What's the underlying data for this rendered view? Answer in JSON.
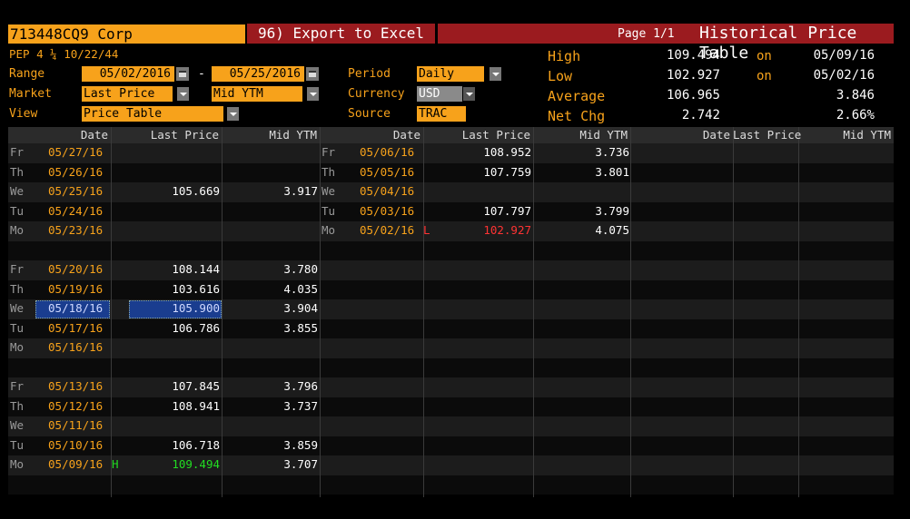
{
  "security": {
    "name": "713448CQ9 Corp",
    "desc": "PEP 4 ¼ 10/22/44"
  },
  "export_label": "96) Export to Excel",
  "page_label": "Page 1/1",
  "title": "Historical Price Table",
  "range": {
    "label": "Range",
    "start": "05/02/2016",
    "dash": "-",
    "end": "05/25/2016"
  },
  "market": {
    "label": "Market",
    "value1": "Last Price",
    "value2": "Mid YTM"
  },
  "view": {
    "label": "View",
    "value": "Price Table"
  },
  "period": {
    "label": "Period",
    "value": "Daily"
  },
  "currency": {
    "label": "Currency",
    "value": "USD"
  },
  "source": {
    "label": "Source",
    "value": "TRAC"
  },
  "stats": {
    "high": {
      "label": "High",
      "value": "109.494",
      "on": "on",
      "date": "05/09/16"
    },
    "low": {
      "label": "Low",
      "value": "102.927",
      "on": "on",
      "date": "05/02/16"
    },
    "average": {
      "label": "Average",
      "value": "106.965",
      "extra": "3.846"
    },
    "netchg": {
      "label": "Net Chg",
      "value": "2.742",
      "extra": "2.66%"
    }
  },
  "headers": {
    "date": "Date",
    "last": "Last Price",
    "ytm": "Mid YTM",
    "date3": "Date",
    "last3": "Last Price"
  },
  "col1": [
    {
      "day": "Fr",
      "date": "05/27/16",
      "flag": "",
      "last": "",
      "ytm": ""
    },
    {
      "day": "Th",
      "date": "05/26/16",
      "flag": "",
      "last": "",
      "ytm": ""
    },
    {
      "day": "We",
      "date": "05/25/16",
      "flag": "",
      "last": "105.669",
      "ytm": "3.917"
    },
    {
      "day": "Tu",
      "date": "05/24/16",
      "flag": "",
      "last": "",
      "ytm": ""
    },
    {
      "day": "Mo",
      "date": "05/23/16",
      "flag": "",
      "last": "",
      "ytm": ""
    },
    {
      "day": "",
      "date": "",
      "flag": "",
      "last": "",
      "ytm": ""
    },
    {
      "day": "Fr",
      "date": "05/20/16",
      "flag": "",
      "last": "108.144",
      "ytm": "3.780"
    },
    {
      "day": "Th",
      "date": "05/19/16",
      "flag": "",
      "last": "103.616",
      "ytm": "4.035"
    },
    {
      "day": "We",
      "date": "05/18/16",
      "flag": "",
      "last": "105.900",
      "ytm": "3.904"
    },
    {
      "day": "Tu",
      "date": "05/17/16",
      "flag": "",
      "last": "106.786",
      "ytm": "3.855"
    },
    {
      "day": "Mo",
      "date": "05/16/16",
      "flag": "",
      "last": "",
      "ytm": ""
    },
    {
      "day": "",
      "date": "",
      "flag": "",
      "last": "",
      "ytm": ""
    },
    {
      "day": "Fr",
      "date": "05/13/16",
      "flag": "",
      "last": "107.845",
      "ytm": "3.796"
    },
    {
      "day": "Th",
      "date": "05/12/16",
      "flag": "",
      "last": "108.941",
      "ytm": "3.737"
    },
    {
      "day": "We",
      "date": "05/11/16",
      "flag": "",
      "last": "",
      "ytm": ""
    },
    {
      "day": "Tu",
      "date": "05/10/16",
      "flag": "",
      "last": "106.718",
      "ytm": "3.859"
    },
    {
      "day": "Mo",
      "date": "05/09/16",
      "flag": "H",
      "last": "109.494",
      "ytm": "3.707"
    }
  ],
  "col2": [
    {
      "day": "Fr",
      "date": "05/06/16",
      "flag": "",
      "last": "108.952",
      "ytm": "3.736"
    },
    {
      "day": "Th",
      "date": "05/05/16",
      "flag": "",
      "last": "107.759",
      "ytm": "3.801"
    },
    {
      "day": "We",
      "date": "05/04/16",
      "flag": "",
      "last": "",
      "ytm": ""
    },
    {
      "day": "Tu",
      "date": "05/03/16",
      "flag": "",
      "last": "107.797",
      "ytm": "3.799"
    },
    {
      "day": "Mo",
      "date": "05/02/16",
      "flag": "L",
      "last": "102.927",
      "ytm": "4.075"
    }
  ],
  "colors": {
    "orange": "#f7a21b",
    "red": "#9b1b1f",
    "high": "#22dd22",
    "low": "#ff3333",
    "select": "#1a3d8f"
  }
}
